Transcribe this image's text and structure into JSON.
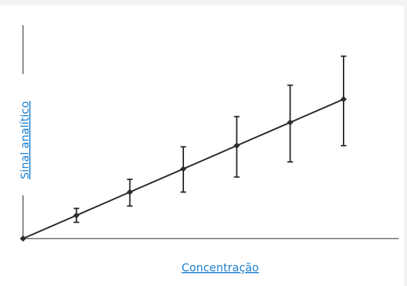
{
  "chart_data": {
    "type": "line",
    "xlabel": "Concentração",
    "ylabel": "Sinal analítico",
    "xlim": [
      0,
      8.5
    ],
    "ylim": [
      0,
      8.5
    ],
    "grid": false,
    "series": [
      {
        "x": [
          0,
          1,
          2,
          3,
          4,
          5,
          6
        ],
        "y": [
          0,
          1,
          2,
          3,
          4,
          5,
          6
        ],
        "error_low": [
          0,
          0.3,
          0.6,
          1.0,
          1.35,
          1.7,
          2.0
        ],
        "error_high": [
          0,
          0.3,
          0.55,
          0.95,
          1.25,
          1.6,
          1.85
        ]
      }
    ],
    "colors": {
      "line": "#2d2d2d",
      "label": "#1a7fd0"
    }
  }
}
